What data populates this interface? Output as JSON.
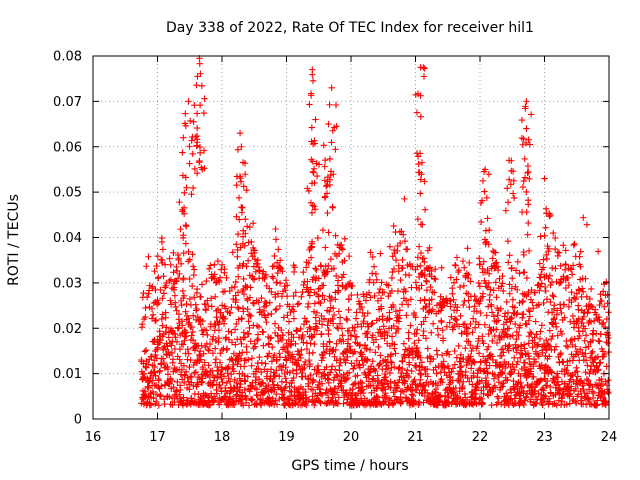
{
  "chart_data": {
    "type": "scatter",
    "title": "Day 338 of 2022, Rate Of TEC Index for receiver hil1",
    "xlabel": "GPS time / hours",
    "ylabel": "ROTI / TECUs",
    "xlim": [
      16,
      24
    ],
    "ylim": [
      0,
      0.08
    ],
    "x_ticks": [
      "16",
      "17",
      "18",
      "19",
      "20",
      "21",
      "22",
      "23",
      "24"
    ],
    "y_ticks": [
      "0",
      "0.01",
      "0.02",
      "0.03",
      "0.04",
      "0.05",
      "0.06",
      "0.07",
      "0.08"
    ],
    "grid": true,
    "marker": "+",
    "color": "#ff0000",
    "series": [
      {
        "name": "ROTI",
        "x_range": [
          16.75,
          24.0
        ],
        "baseline_range": [
          0.003,
          0.045
        ],
        "peaks": [
          {
            "x": 17.4,
            "y": 0.062
          },
          {
            "x": 17.48,
            "y": 0.07
          },
          {
            "x": 17.65,
            "y": 0.0795
          },
          {
            "x": 17.62,
            "y": 0.0755
          },
          {
            "x": 18.28,
            "y": 0.063
          },
          {
            "x": 18.3,
            "y": 0.06
          },
          {
            "x": 19.4,
            "y": 0.077
          },
          {
            "x": 19.45,
            "y": 0.066
          },
          {
            "x": 19.7,
            "y": 0.073
          },
          {
            "x": 19.65,
            "y": 0.065
          },
          {
            "x": 21.08,
            "y": 0.0775
          },
          {
            "x": 21.1,
            "y": 0.0565
          },
          {
            "x": 22.08,
            "y": 0.055
          },
          {
            "x": 22.45,
            "y": 0.057
          },
          {
            "x": 22.72,
            "y": 0.07
          },
          {
            "x": 22.72,
            "y": 0.064
          },
          {
            "x": 23.0,
            "y": 0.053
          }
        ]
      }
    ]
  }
}
